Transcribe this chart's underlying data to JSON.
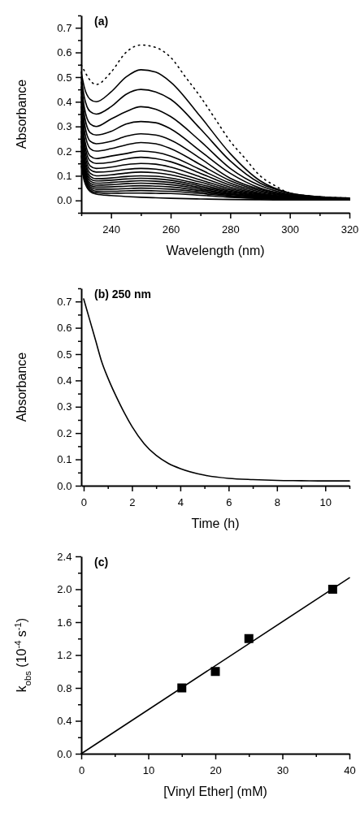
{
  "chart_data": [
    {
      "type": "line",
      "title": "(a)",
      "xlabel": "Wavelength (nm)",
      "ylabel": "Absorbance",
      "xlim": [
        230,
        320
      ],
      "ylim": [
        -0.05,
        0.75
      ],
      "xticks": [
        {
          "value": 230,
          "label": null
        },
        240,
        {
          "value": 250,
          "label": null
        },
        260,
        {
          "value": 270,
          "label": null
        },
        280,
        {
          "value": 290,
          "label": null
        },
        300,
        {
          "value": 310,
          "label": null
        },
        320
      ],
      "yticks": [
        {
          "value": -0.05,
          "label": null
        },
        {
          "value": 0,
          "label": "0.0"
        },
        {
          "value": 0.05,
          "label": null
        },
        0.1,
        {
          "value": 0.15,
          "label": null
        },
        0.2,
        {
          "value": 0.25,
          "label": null
        },
        0.3,
        {
          "value": 0.35,
          "label": null
        },
        0.4,
        {
          "value": 0.45,
          "label": null
        },
        0.5,
        {
          "value": 0.55,
          "label": null
        },
        0.6,
        {
          "value": 0.65,
          "label": null
        },
        0.7,
        {
          "value": 0.75,
          "label": null
        }
      ],
      "x": [
        230,
        231,
        233,
        235,
        240,
        245,
        250,
        255,
        260,
        270,
        280,
        290,
        300,
        310,
        320
      ],
      "series": [
        {
          "color": "#000000",
          "line_style": "dotted",
          "x": [
            230,
            235,
            240,
            245,
            250,
            255,
            260,
            265,
            270,
            275,
            280,
            285,
            290,
            295,
            300,
            310,
            320
          ],
          "values": [
            0.55,
            0.47,
            0.52,
            0.6,
            0.63,
            0.62,
            0.58,
            0.5,
            0.42,
            0.33,
            0.24,
            0.17,
            0.1,
            0.06,
            0.03,
            0.015,
            0.01
          ]
        },
        {
          "color": "#000000",
          "values": [
            0.52,
            0.46,
            0.41,
            0.4,
            0.44,
            0.5,
            0.53,
            0.52,
            0.48,
            0.34,
            0.19,
            0.08,
            0.03,
            0.015,
            0.01
          ]
        },
        {
          "color": "#000000",
          "values": [
            0.5,
            0.42,
            0.36,
            0.35,
            0.38,
            0.43,
            0.45,
            0.44,
            0.41,
            0.29,
            0.16,
            0.07,
            0.03,
            0.015,
            0.01
          ]
        },
        {
          "color": "#000000",
          "values": [
            0.48,
            0.38,
            0.31,
            0.3,
            0.33,
            0.36,
            0.38,
            0.37,
            0.34,
            0.24,
            0.13,
            0.06,
            0.025,
            0.012,
            0.008
          ]
        },
        {
          "color": "#000000",
          "values": [
            0.46,
            0.35,
            0.275,
            0.265,
            0.28,
            0.31,
            0.32,
            0.315,
            0.29,
            0.2,
            0.11,
            0.05,
            0.022,
            0.01,
            0.007
          ]
        },
        {
          "color": "#000000",
          "values": [
            0.44,
            0.32,
            0.24,
            0.23,
            0.24,
            0.26,
            0.27,
            0.265,
            0.245,
            0.17,
            0.09,
            0.045,
            0.02,
            0.01,
            0.007
          ]
        },
        {
          "color": "#000000",
          "values": [
            0.42,
            0.29,
            0.21,
            0.2,
            0.21,
            0.225,
            0.235,
            0.23,
            0.21,
            0.145,
            0.08,
            0.04,
            0.018,
            0.009,
            0.006
          ]
        },
        {
          "color": "#000000",
          "values": [
            0.4,
            0.26,
            0.18,
            0.17,
            0.18,
            0.19,
            0.2,
            0.195,
            0.18,
            0.125,
            0.07,
            0.035,
            0.016,
            0.008,
            0.006
          ]
        },
        {
          "color": "#000000",
          "values": [
            0.38,
            0.24,
            0.16,
            0.15,
            0.155,
            0.168,
            0.175,
            0.17,
            0.157,
            0.11,
            0.062,
            0.03,
            0.014,
            0.008,
            0.005
          ]
        },
        {
          "color": "#000000",
          "values": [
            0.36,
            0.22,
            0.14,
            0.13,
            0.135,
            0.145,
            0.15,
            0.147,
            0.135,
            0.095,
            0.054,
            0.027,
            0.013,
            0.007,
            0.005
          ]
        },
        {
          "color": "#000000",
          "values": [
            0.34,
            0.2,
            0.125,
            0.115,
            0.118,
            0.126,
            0.13,
            0.127,
            0.117,
            0.083,
            0.047,
            0.024,
            0.012,
            0.007,
            0.005
          ]
        },
        {
          "color": "#000000",
          "values": [
            0.32,
            0.18,
            0.11,
            0.1,
            0.104,
            0.111,
            0.115,
            0.112,
            0.104,
            0.074,
            0.042,
            0.022,
            0.011,
            0.006,
            0.004
          ]
        },
        {
          "color": "#000000",
          "values": [
            0.3,
            0.165,
            0.098,
            0.088,
            0.091,
            0.097,
            0.1,
            0.098,
            0.091,
            0.065,
            0.037,
            0.019,
            0.01,
            0.006,
            0.004
          ]
        },
        {
          "color": "#000000",
          "values": [
            0.28,
            0.15,
            0.088,
            0.079,
            0.082,
            0.087,
            0.09,
            0.088,
            0.082,
            0.058,
            0.034,
            0.018,
            0.009,
            0.005,
            0.004
          ]
        },
        {
          "color": "#000000",
          "values": [
            0.26,
            0.14,
            0.079,
            0.07,
            0.073,
            0.077,
            0.08,
            0.078,
            0.073,
            0.052,
            0.03,
            0.016,
            0.008,
            0.005,
            0.003
          ]
        },
        {
          "color": "#000000",
          "values": [
            0.24,
            0.13,
            0.07,
            0.062,
            0.064,
            0.068,
            0.07,
            0.068,
            0.064,
            0.046,
            0.027,
            0.014,
            0.007,
            0.004,
            0.003
          ]
        },
        {
          "color": "#000000",
          "values": [
            0.22,
            0.12,
            0.062,
            0.054,
            0.055,
            0.058,
            0.06,
            0.058,
            0.055,
            0.04,
            0.024,
            0.013,
            0.007,
            0.004,
            0.003
          ]
        },
        {
          "color": "#000000",
          "values": [
            0.2,
            0.11,
            0.055,
            0.046,
            0.046,
            0.048,
            0.05,
            0.049,
            0.046,
            0.034,
            0.02,
            0.011,
            0.006,
            0.004,
            0.003
          ]
        },
        {
          "color": "#000000",
          "values": [
            0.18,
            0.1,
            0.048,
            0.038,
            0.037,
            0.039,
            0.04,
            0.039,
            0.037,
            0.028,
            0.017,
            0.01,
            0.005,
            0.003,
            0.002
          ]
        },
        {
          "color": "#000000",
          "values": [
            0.16,
            0.09,
            0.042,
            0.032,
            0.029,
            0.03,
            0.03,
            0.029,
            0.028,
            0.021,
            0.013,
            0.008,
            0.004,
            0.003,
            0.002
          ]
        },
        {
          "color": "#000000",
          "values": [
            0.14,
            0.08,
            0.036,
            0.026,
            0.02,
            0.016,
            0.013,
            0.011,
            0.009,
            0.006,
            0.004,
            0.003,
            0.002,
            0.002,
            0.002
          ]
        }
      ]
    },
    {
      "type": "line",
      "title": "(b) 250 nm",
      "xlabel": "Time (h)",
      "ylabel": "Absorbance",
      "xlim": [
        -0.1,
        11
      ],
      "ylim": [
        0,
        0.75
      ],
      "xticks": [
        0,
        {
          "value": 1,
          "label": null
        },
        2,
        {
          "value": 3,
          "label": null
        },
        4,
        {
          "value": 5,
          "label": null
        },
        6,
        {
          "value": 7,
          "label": null
        },
        8,
        {
          "value": 9,
          "label": null
        },
        10,
        {
          "value": 11,
          "label": null
        }
      ],
      "yticks": [
        {
          "value": 0,
          "label": "0.0"
        },
        {
          "value": 0.05,
          "label": null
        },
        0.1,
        {
          "value": 0.15,
          "label": null
        },
        0.2,
        {
          "value": 0.25,
          "label": null
        },
        0.3,
        {
          "value": 0.35,
          "label": null
        },
        0.4,
        {
          "value": 0.45,
          "label": null
        },
        0.5,
        {
          "value": 0.55,
          "label": null
        },
        0.6,
        {
          "value": 0.65,
          "label": null
        },
        0.7,
        {
          "value": 0.75,
          "label": null
        }
      ],
      "x": [
        0,
        0.25,
        0.5,
        0.75,
        1,
        1.5,
        2,
        2.5,
        3,
        3.5,
        4,
        5,
        6,
        7,
        8,
        9,
        10,
        11
      ],
      "series": [
        {
          "color": "#000000",
          "values": [
            0.71,
            0.63,
            0.55,
            0.47,
            0.41,
            0.31,
            0.225,
            0.16,
            0.115,
            0.085,
            0.065,
            0.04,
            0.028,
            0.023,
            0.02,
            0.019,
            0.018,
            0.018
          ]
        }
      ]
    },
    {
      "type": "scatter",
      "title": "(c)",
      "xlabel": "[Vinyl Ether] (mM)",
      "ylabel": "k$_{obs}$ (10$^{-4}$ s$^{-1}$)",
      "xlim": [
        0,
        40
      ],
      "ylim": [
        0,
        2.4
      ],
      "xticks": [
        0,
        {
          "value": 5,
          "label": null
        },
        10,
        {
          "value": 15,
          "label": null
        },
        20,
        {
          "value": 25,
          "label": null
        },
        30,
        {
          "value": 35,
          "label": null
        },
        40
      ],
      "yticks": [
        {
          "value": 0,
          "label": "0.0"
        },
        {
          "value": 0.2,
          "label": null
        },
        0.4,
        {
          "value": 0.6,
          "label": null
        },
        0.8,
        {
          "value": 1,
          "label": null
        },
        1.2,
        {
          "value": 1.4,
          "label": null
        },
        1.6,
        {
          "value": 1.8,
          "label": null
        },
        {
          "value": 2,
          "label": "2.0"
        },
        {
          "value": 2.2,
          "label": null
        },
        2.4
      ],
      "series": [
        {
          "marker": "square",
          "color": "#000000",
          "x": [
            15,
            20,
            25,
            37.5
          ],
          "values": [
            0.8,
            1.0,
            1.4,
            2.0
          ]
        },
        {
          "type": "line",
          "color": "#000000",
          "x": [
            0,
            40
          ],
          "values": [
            0,
            2.14
          ]
        }
      ]
    }
  ]
}
